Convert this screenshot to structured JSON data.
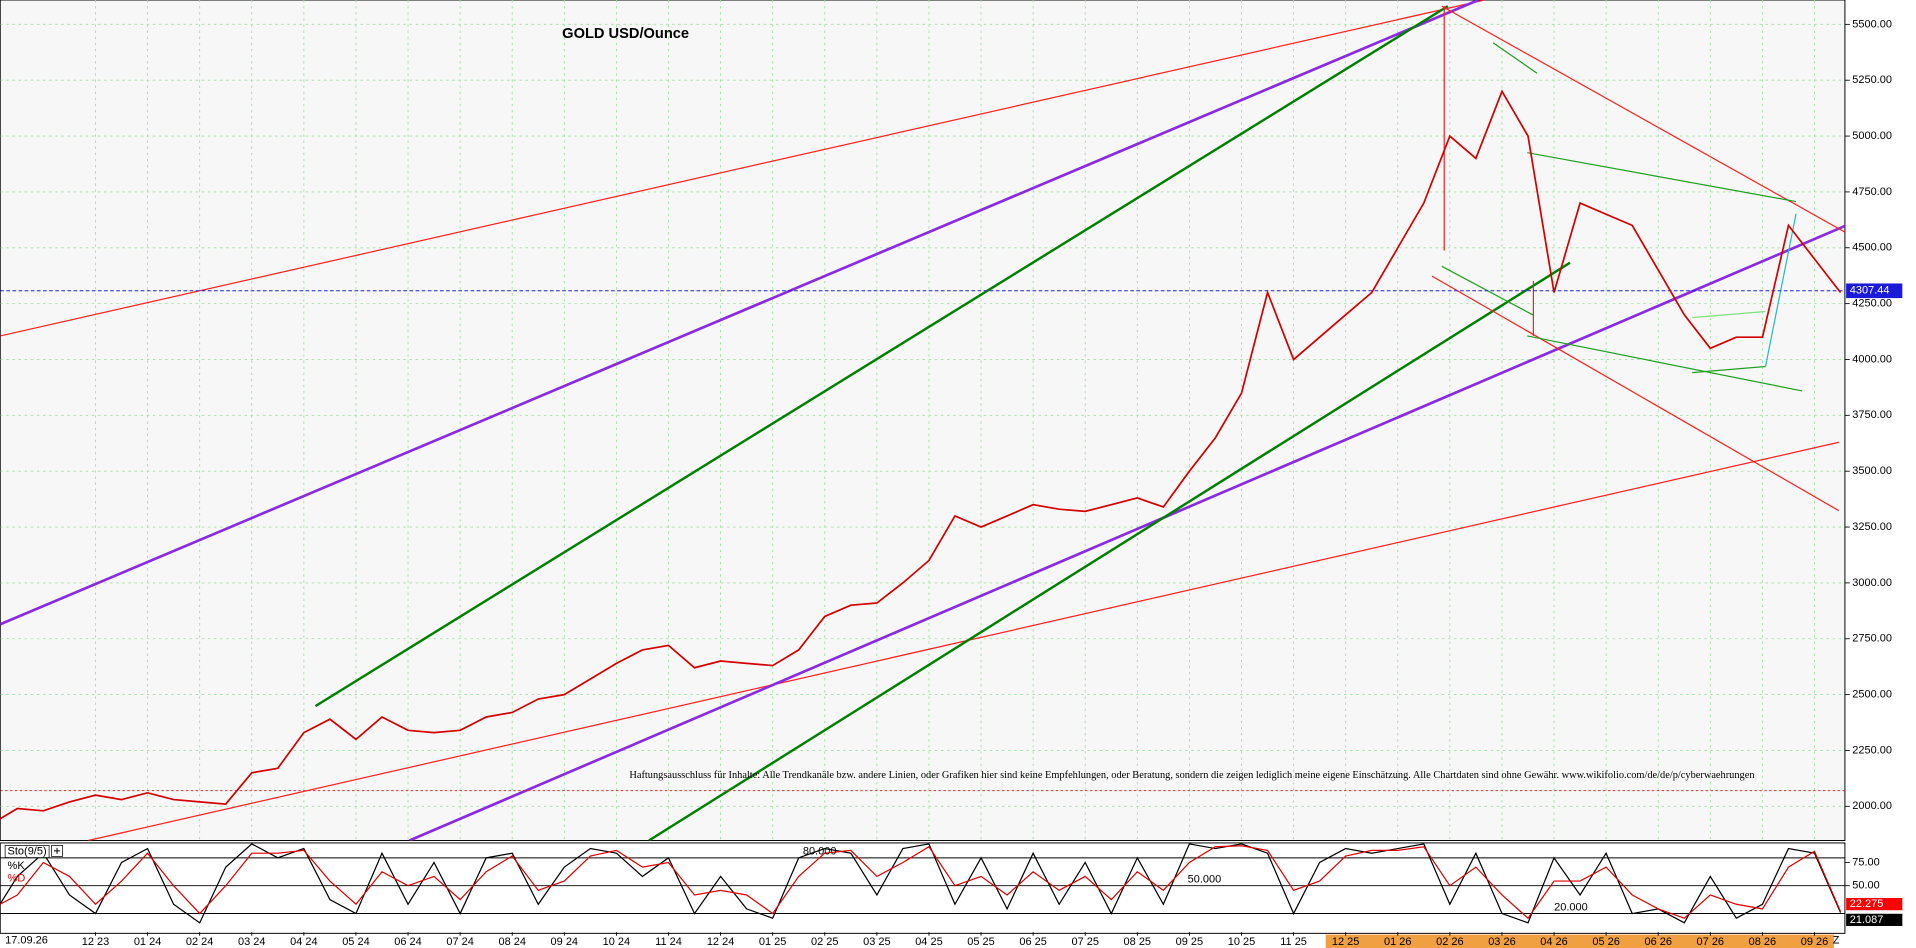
{
  "chart_data": [
    {
      "type": "line",
      "title": "GOLD USD/Ounce",
      "annotation": "Haftungsausschluss für Inhalte: Alle Trendkanäle bzw. andere Linien, oder Grafiken hier sind keine Empfehlungen, oder Beratung, sondern die zeigen lediglich meine eigene Einschätzung. Alle Chartdaten sind ohne Gewähr. www.wikifolio.com/de/de/p/cyberwaehrungen",
      "date_label": "17.09.26",
      "end_label": "Z",
      "categories": [
        null,
        null,
        null,
        null,
        "12 23",
        null,
        "01 24",
        null,
        "02 24",
        null,
        "03 24",
        null,
        "04 24",
        null,
        "05 24",
        null,
        "06 24",
        null,
        "07 24",
        null,
        "08 24",
        null,
        "09 24",
        null,
        "10 24",
        null,
        "11 24",
        null,
        "12 24",
        null,
        "01 25",
        null,
        "02 25",
        null,
        "03 25",
        null,
        "04 25",
        null,
        "05 25",
        null,
        "06 25",
        null,
        "07 25",
        null,
        "08 25",
        null,
        "09 25",
        null,
        "10 25",
        null,
        "11 25",
        null,
        "12 25",
        null,
        "01 26",
        null,
        "02 26",
        null,
        "03 26",
        null,
        "04 26",
        null,
        "05 26",
        null,
        "06 26",
        null,
        "07 26",
        null,
        "08 26",
        null,
        "09 26",
        null
      ],
      "values": [
        1920,
        1990,
        1980,
        2020,
        2050,
        2030,
        2060,
        2030,
        2020,
        2010,
        2150,
        2170,
        2330,
        2390,
        2300,
        2400,
        2340,
        2330,
        2340,
        2400,
        2420,
        2480,
        2500,
        2570,
        2640,
        2700,
        2720,
        2620,
        2650,
        2640,
        2630,
        2700,
        2850,
        2900,
        2910,
        3000,
        3100,
        3300,
        3250,
        3300,
        3350,
        3330,
        3320,
        3350,
        3380,
        3340,
        3500,
        3650,
        3850,
        4300,
        4000,
        4100,
        4200,
        4300,
        4500,
        4700,
        5000,
        4900,
        5200,
        5000,
        4300,
        4700,
        4650,
        4600,
        4400,
        4200,
        4050,
        4100,
        4100,
        4600,
        4450,
        4300
      ],
      "color": "#d40000",
      "current_value": 4307.44,
      "reference_value": 2070,
      "ylim": [
        1847,
        5609
      ],
      "yticks": [
        {
          "value": 2000,
          "label": "2000.00"
        },
        {
          "value": 2250,
          "label": "2250.00"
        },
        {
          "value": 2500,
          "label": "2500.00"
        },
        {
          "value": 2750,
          "label": "2750.00"
        },
        {
          "value": 3000,
          "label": "3000.00"
        },
        {
          "value": 3250,
          "label": "3250.00"
        },
        {
          "value": 3500,
          "label": "3500.00"
        },
        {
          "value": 3750,
          "label": "3750.00"
        },
        {
          "value": 4000,
          "label": "4000.00"
        },
        {
          "value": 4250,
          "label": "4250.00"
        },
        {
          "value": 4500,
          "label": "4500.00"
        },
        {
          "value": 4750,
          "label": "4750.00"
        },
        {
          "value": 5000,
          "label": "5000.00"
        },
        {
          "value": 5250,
          "label": "5250.00"
        },
        {
          "value": 5500,
          "label": "5500.00"
        }
      ],
      "grid": true
    },
    {
      "type": "line",
      "title": "Sto(9/5)",
      "series": [
        {
          "name": "%K",
          "color": "#000000",
          "last": 21.087,
          "values": [
            15,
            60,
            85,
            40,
            20,
            75,
            90,
            30,
            10,
            70,
            95,
            80,
            90,
            35,
            20,
            85,
            30,
            75,
            20,
            80,
            85,
            30,
            70,
            90,
            85,
            60,
            80,
            20,
            60,
            25,
            15,
            80,
            90,
            85,
            40,
            90,
            95,
            30,
            80,
            25,
            85,
            30,
            75,
            20,
            80,
            30,
            95,
            90,
            95,
            85,
            20,
            75,
            90,
            85,
            90,
            95,
            30,
            85,
            20,
            10,
            80,
            40,
            85,
            20,
            25,
            10,
            60,
            15,
            30,
            90,
            85,
            21.087
          ]
        },
        {
          "name": "%D",
          "color": "#e00000",
          "last": 22.275,
          "values": [
            25,
            40,
            75,
            60,
            30,
            55,
            85,
            50,
            20,
            50,
            85,
            85,
            88,
            55,
            30,
            65,
            50,
            60,
            35,
            65,
            82,
            45,
            55,
            82,
            88,
            70,
            75,
            40,
            45,
            40,
            20,
            60,
            85,
            88,
            60,
            75,
            92,
            50,
            60,
            40,
            65,
            45,
            60,
            35,
            65,
            45,
            75,
            92,
            93,
            88,
            45,
            55,
            82,
            88,
            88,
            92,
            50,
            70,
            40,
            15,
            55,
            55,
            70,
            40,
            25,
            15,
            40,
            30,
            25,
            70,
            87,
            22.275
          ]
        }
      ],
      "ylim": [
        0,
        100
      ],
      "yticks": [
        {
          "value": 50,
          "label": "50.00"
        },
        {
          "value": 75,
          "label": "75.00"
        }
      ],
      "levels": [
        {
          "value": 80,
          "label": "80.000"
        },
        {
          "value": 50,
          "label": "50.000"
        },
        {
          "value": 20,
          "label": "20.000"
        }
      ]
    }
  ]
}
